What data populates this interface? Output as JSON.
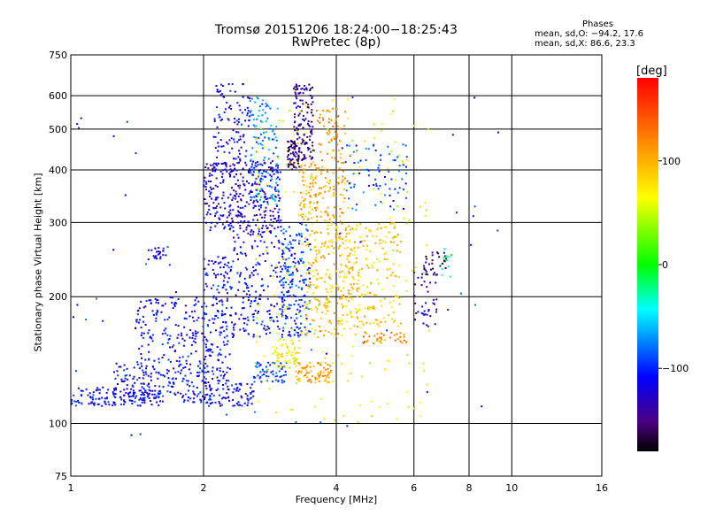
{
  "chart_data": {
    "type": "scatter",
    "title": "Tromsø 20151206 18:24:00−18:25:43",
    "subtitle": "RwPretec (8p)",
    "xlabel": "Frequency [MHz]",
    "ylabel": "Stationary phase Virtual Height [km]",
    "x_scale": "log",
    "y_scale": "log",
    "xlim": [
      1,
      16
    ],
    "ylim": [
      75,
      750
    ],
    "x_ticks": [
      "1",
      "2",
      "4",
      "6",
      "8",
      "10",
      "16"
    ],
    "y_ticks": [
      "75",
      "100",
      "200",
      "300",
      "400",
      "500",
      "600",
      "750"
    ],
    "grid": true,
    "phase_stats": {
      "header": "Phases",
      "o_line": "mean, sd,O: −94.2, 17.6",
      "x_line": "mean, sd,X: 86.6, 23.3"
    },
    "colorbar": {
      "label": "[deg]",
      "range": [
        -180,
        180
      ],
      "ticks": [
        "100",
        "0",
        "−100"
      ],
      "tick_values": [
        100,
        0,
        -100
      ]
    },
    "clusters": [
      {
        "x": [
          1.0,
          1.6
        ],
        "y": [
          110,
          122
        ],
        "phase": -110,
        "n": 140
      },
      {
        "x": [
          1.25,
          2.05
        ],
        "y": [
          112,
          140
        ],
        "phase": -110,
        "n": 180
      },
      {
        "x": [
          1.4,
          2.05
        ],
        "y": [
          140,
          200
        ],
        "phase": -112,
        "n": 160
      },
      {
        "x": [
          1.5,
          1.65
        ],
        "y": [
          245,
          262
        ],
        "phase": -120,
        "n": 25
      },
      {
        "x": [
          2.0,
          2.6
        ],
        "y": [
          110,
          125
        ],
        "phase": -110,
        "n": 90
      },
      {
        "x": [
          2.0,
          2.3
        ],
        "y": [
          125,
          250
        ],
        "phase": -110,
        "n": 160
      },
      {
        "x": [
          2.0,
          3.0
        ],
        "y": [
          280,
          420
        ],
        "phase": -125,
        "n": 360
      },
      {
        "x": [
          2.1,
          2.55
        ],
        "y": [
          420,
          640
        ],
        "phase": -115,
        "n": 100
      },
      {
        "x": [
          2.3,
          3.4
        ],
        "y": [
          160,
          280
        ],
        "phase": -110,
        "n": 260
      },
      {
        "x": [
          2.55,
          2.95
        ],
        "y": [
          330,
          600
        ],
        "phase": -75,
        "n": 120
      },
      {
        "x": [
          2.6,
          3.1
        ],
        "y": [
          125,
          140
        ],
        "phase": -95,
        "n": 60
      },
      {
        "x": [
          2.9,
          3.3
        ],
        "y": [
          135,
          160
        ],
        "phase": 70,
        "n": 60
      },
      {
        "x": [
          3.0,
          3.5
        ],
        "y": [
          160,
          300
        ],
        "phase": -90,
        "n": 120
      },
      {
        "x": [
          3.1,
          3.3
        ],
        "y": [
          400,
          470
        ],
        "phase": -150,
        "n": 60
      },
      {
        "x": [
          3.2,
          3.55
        ],
        "y": [
          420,
          640
        ],
        "phase": -145,
        "n": 130
      },
      {
        "x": [
          3.2,
          3.9
        ],
        "y": [
          125,
          140
        ],
        "phase": 110,
        "n": 80
      },
      {
        "x": [
          3.3,
          4.2
        ],
        "y": [
          300,
          420
        ],
        "phase": 105,
        "n": 140
      },
      {
        "x": [
          3.4,
          4.5
        ],
        "y": [
          160,
          300
        ],
        "phase": 95,
        "n": 200
      },
      {
        "x": [
          3.6,
          4.2
        ],
        "y": [
          420,
          560
        ],
        "phase": 115,
        "n": 50
      },
      {
        "x": [
          4.0,
          5.6
        ],
        "y": [
          170,
          300
        ],
        "phase": 90,
        "n": 180
      },
      {
        "x": [
          4.2,
          5.8
        ],
        "y": [
          320,
          460
        ],
        "phase": -90,
        "n": 80
      },
      {
        "x": [
          4.6,
          5.8
        ],
        "y": [
          155,
          165
        ],
        "phase": 120,
        "n": 40
      },
      {
        "x": [
          6.0,
          6.8
        ],
        "y": [
          170,
          230
        ],
        "phase": -130,
        "n": 40
      },
      {
        "x": [
          6.3,
          7.1
        ],
        "y": [
          225,
          255
        ],
        "phase": -150,
        "n": 30
      },
      {
        "x": [
          6.9,
          7.3
        ],
        "y": [
          220,
          260
        ],
        "phase": -20,
        "n": 12
      },
      {
        "x": [
          2.6,
          6.5
        ],
        "y": [
          100,
          600
        ],
        "phase": 60,
        "n": 220
      },
      {
        "x": [
          1.0,
          10.0
        ],
        "y": [
          90,
          620
        ],
        "phase": -100,
        "n": 60
      }
    ]
  }
}
